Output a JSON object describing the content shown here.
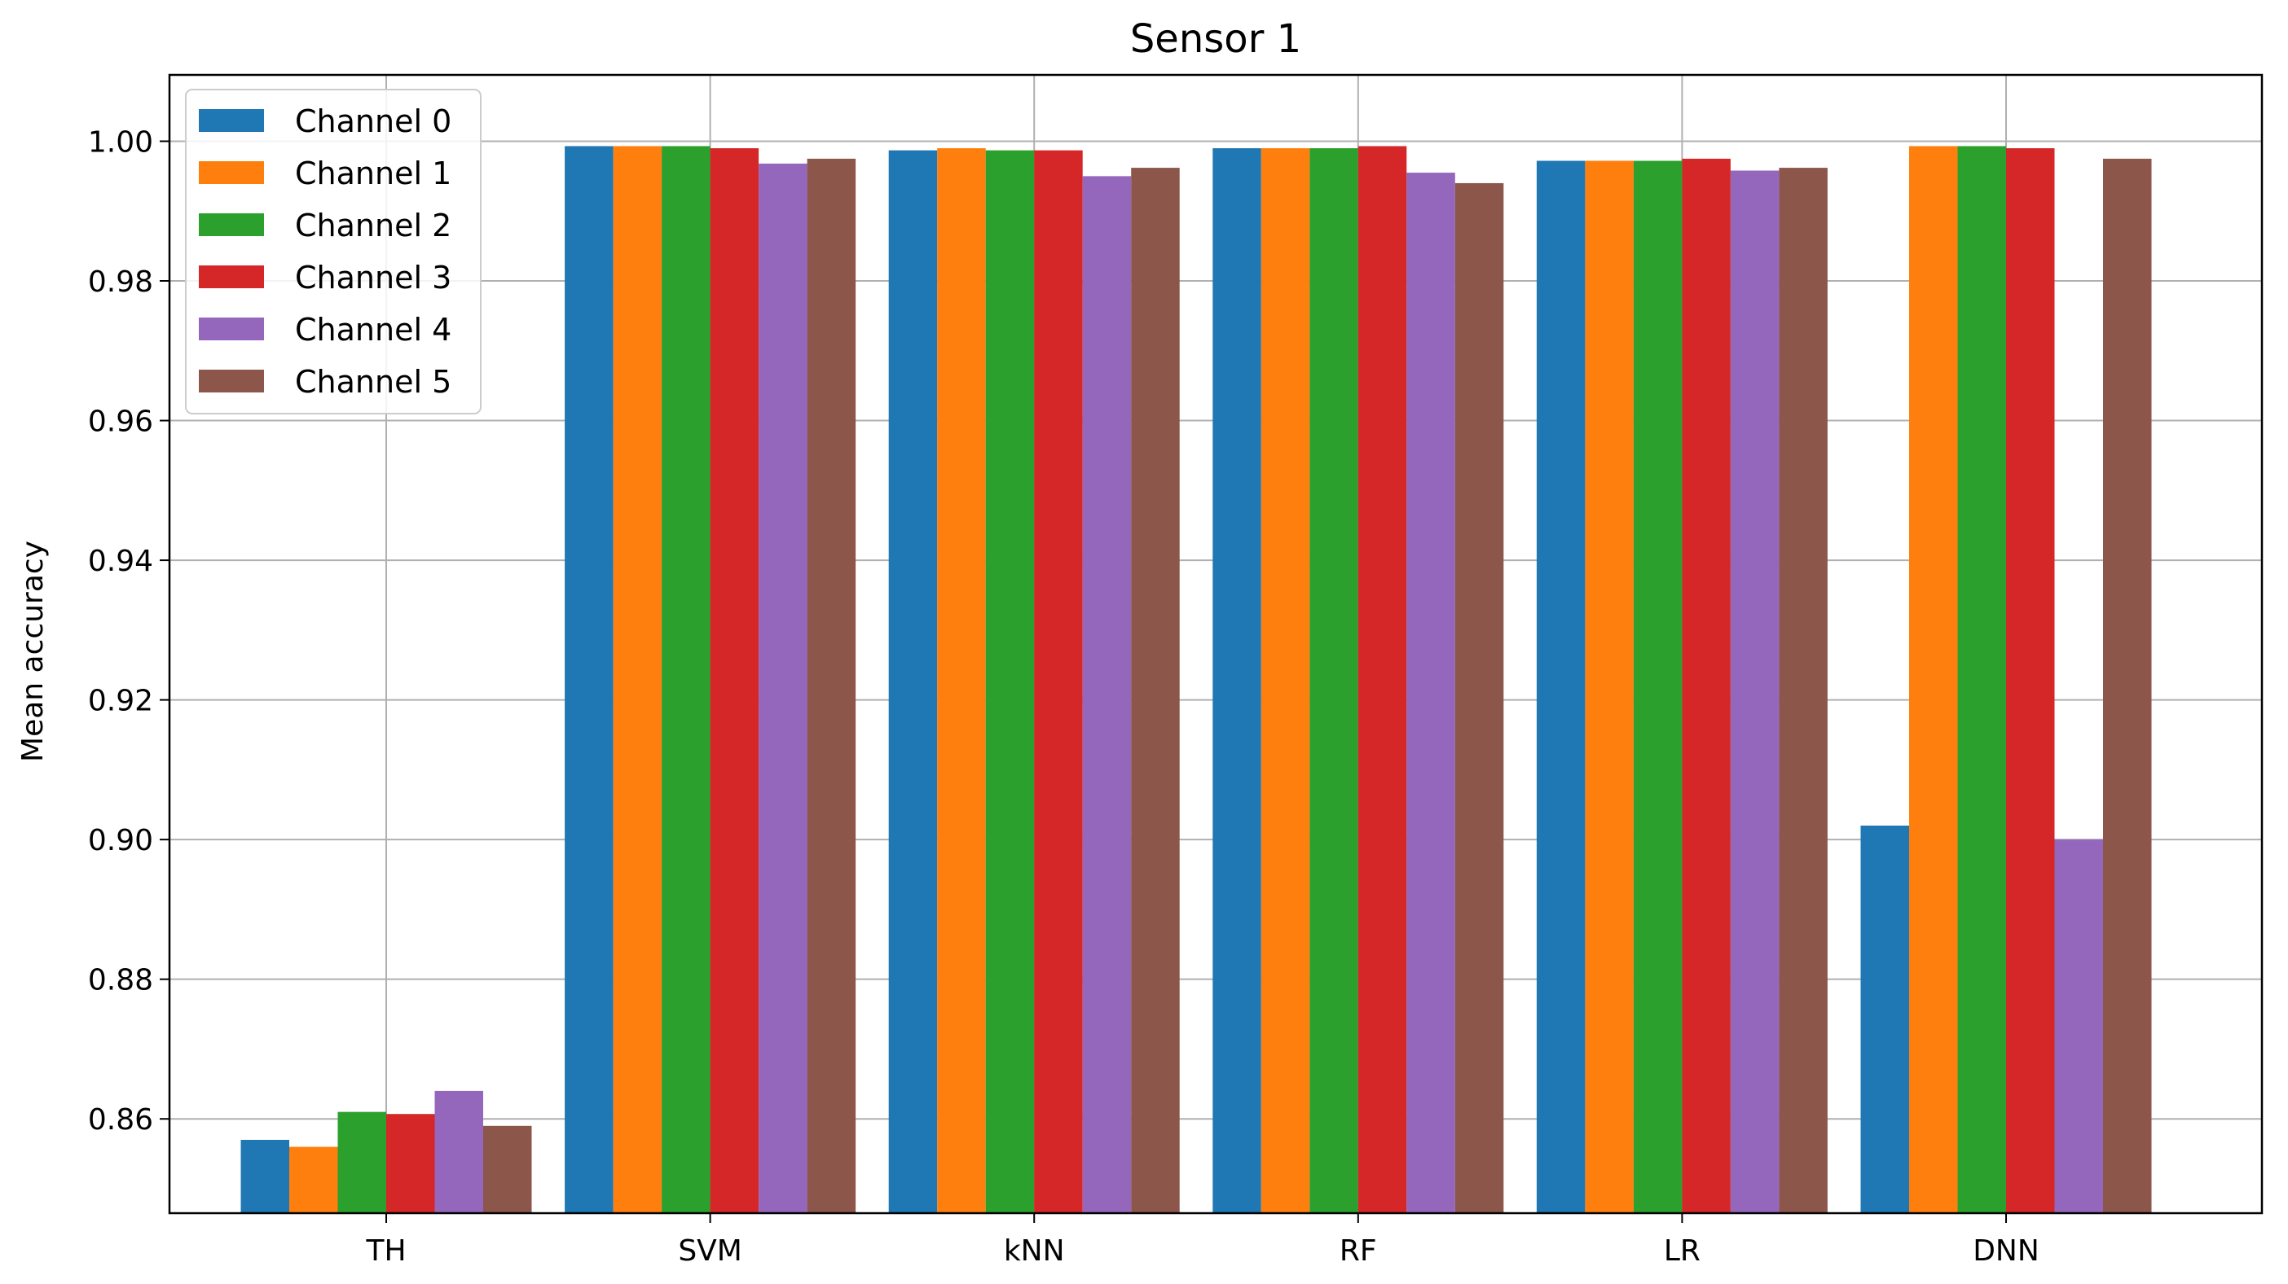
{
  "chart_data": {
    "type": "bar",
    "title": "Sensor 1",
    "xlabel": "",
    "ylabel": "Mean accuracy",
    "ylim": [
      0.8465,
      1.0095
    ],
    "yticks": [
      "0.86",
      "0.88",
      "0.90",
      "0.92",
      "0.94",
      "0.96",
      "0.98",
      "1.00"
    ],
    "yticks_values": [
      0.86,
      0.88,
      0.9,
      0.92,
      0.94,
      0.96,
      0.98,
      1.0
    ],
    "grid": true,
    "legend_position": "top-left",
    "categories": [
      "TH",
      "SVM",
      "kNN",
      "RF",
      "LR",
      "DNN"
    ],
    "series": [
      {
        "name": "Channel 0",
        "color": "#1f77b4",
        "values": [
          0.857,
          0.9993,
          0.9987,
          0.999,
          0.9972,
          0.902
        ]
      },
      {
        "name": "Channel 1",
        "color": "#ff7f0e",
        "values": [
          0.856,
          0.9993,
          0.999,
          0.999,
          0.9972,
          0.9993
        ]
      },
      {
        "name": "Channel 2",
        "color": "#2ca02c",
        "values": [
          0.861,
          0.9993,
          0.9987,
          0.999,
          0.9972,
          0.9993
        ]
      },
      {
        "name": "Channel 3",
        "color": "#d62728",
        "values": [
          0.8607,
          0.999,
          0.9987,
          0.9993,
          0.9975,
          0.999
        ]
      },
      {
        "name": "Channel 4",
        "color": "#9467bd",
        "values": [
          0.864,
          0.9968,
          0.995,
          0.9955,
          0.9958,
          0.9
        ]
      },
      {
        "name": "Channel 5",
        "color": "#8c564b",
        "values": [
          0.859,
          0.9975,
          0.9962,
          0.994,
          0.9962,
          0.9975
        ]
      }
    ]
  }
}
